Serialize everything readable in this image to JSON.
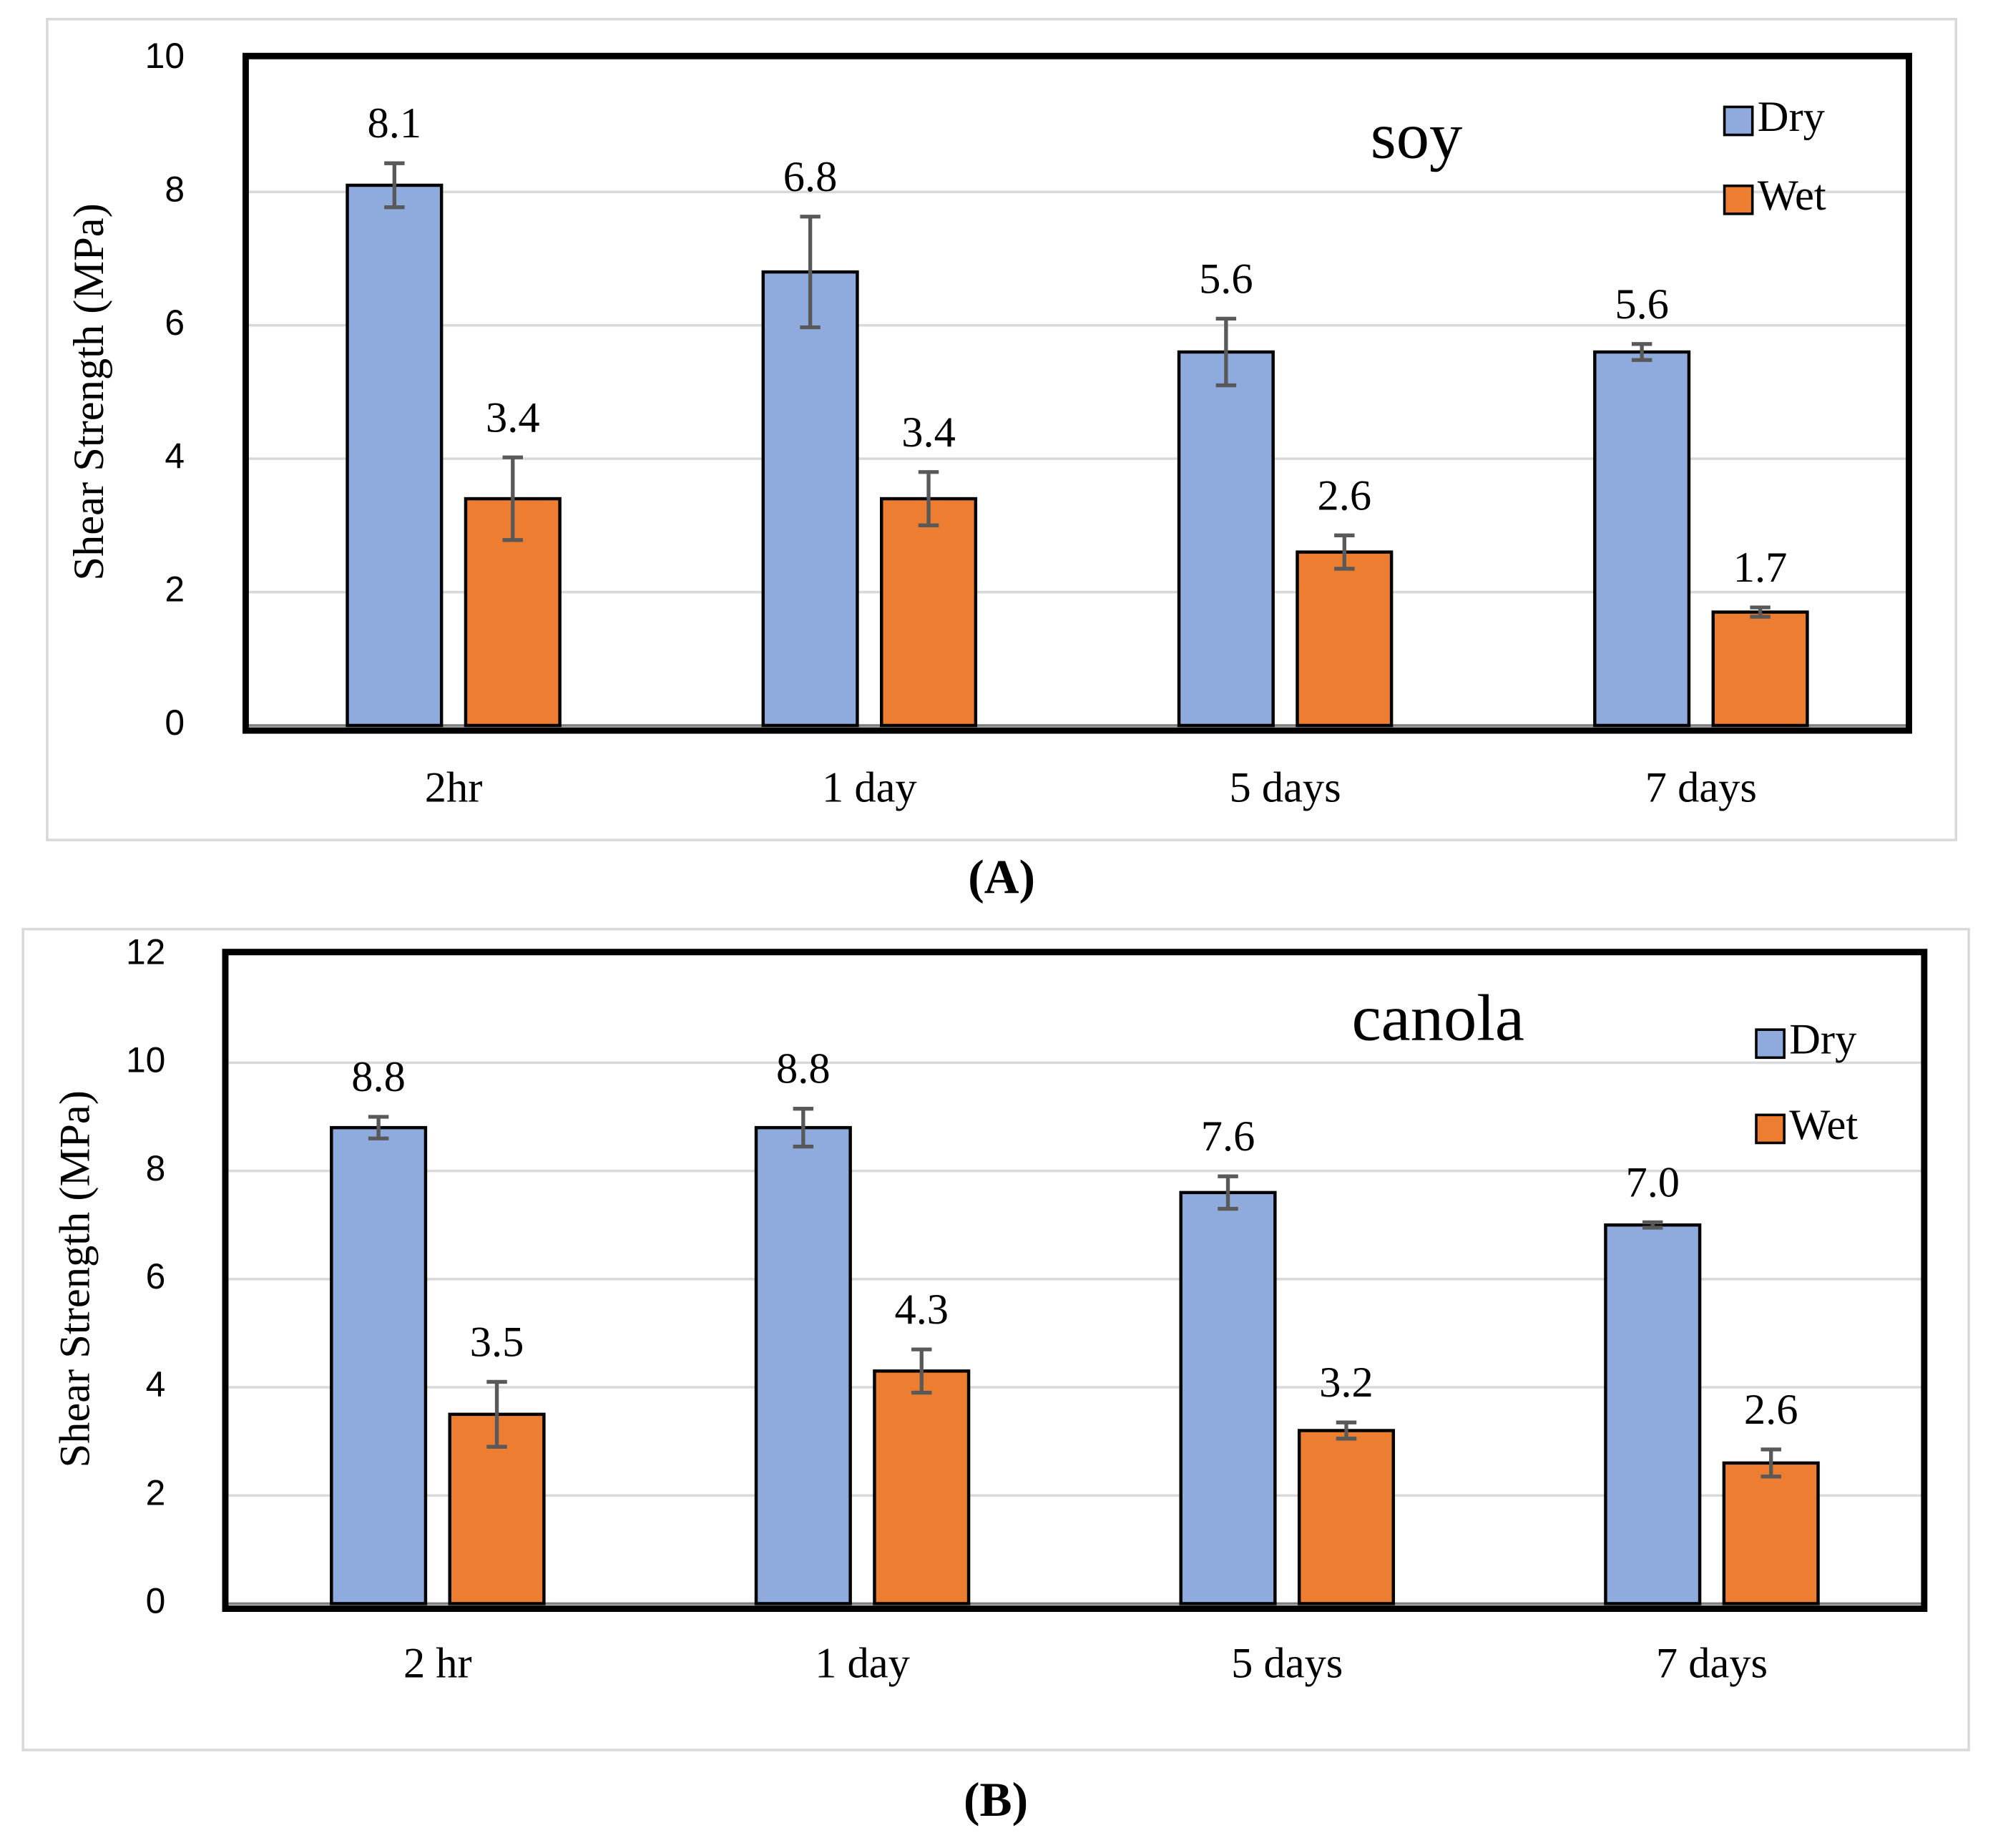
{
  "chart_data": [
    {
      "type": "bar",
      "title": "soy",
      "panel_label": "(A)",
      "y_label": "Shear Strength (MPa)",
      "categories": [
        "2hr",
        "1 day",
        "5 days",
        "7 days"
      ],
      "series": [
        {
          "name": "Dry",
          "color": "#8faadc",
          "values": [
            8.1,
            6.8,
            5.6,
            5.6
          ],
          "errors": [
            0.33,
            0.83,
            0.5,
            0.12
          ]
        },
        {
          "name": "Wet",
          "color": "#ed7d31",
          "values": [
            3.4,
            3.4,
            2.6,
            1.7
          ],
          "errors": [
            0.62,
            0.4,
            0.25,
            0.07
          ]
        }
      ],
      "ylim": [
        0,
        10
      ],
      "yticks": [
        0,
        2,
        4,
        6,
        8,
        10
      ],
      "grid": true,
      "legend": "upper right"
    },
    {
      "type": "bar",
      "title": "canola",
      "panel_label": "(B)",
      "y_label": "Shear Strength (MPa)",
      "categories": [
        "2 hr",
        "1 day",
        "5 days",
        "7 days"
      ],
      "series": [
        {
          "name": "Dry",
          "color": "#8faadc",
          "values": [
            8.8,
            8.8,
            7.6,
            7.0
          ],
          "value_labels": [
            "8.8",
            "8.8",
            "7.6",
            "7.0"
          ],
          "errors": [
            0.2,
            0.35,
            0.3,
            0.05
          ]
        },
        {
          "name": "Wet",
          "color": "#ed7d31",
          "values": [
            3.5,
            4.3,
            3.2,
            2.6
          ],
          "errors": [
            0.6,
            0.4,
            0.15,
            0.25
          ]
        }
      ],
      "ylim": [
        0,
        12
      ],
      "yticks": [
        0,
        2,
        4,
        6,
        8,
        10,
        12
      ],
      "grid": true,
      "legend": "upper right"
    }
  ]
}
